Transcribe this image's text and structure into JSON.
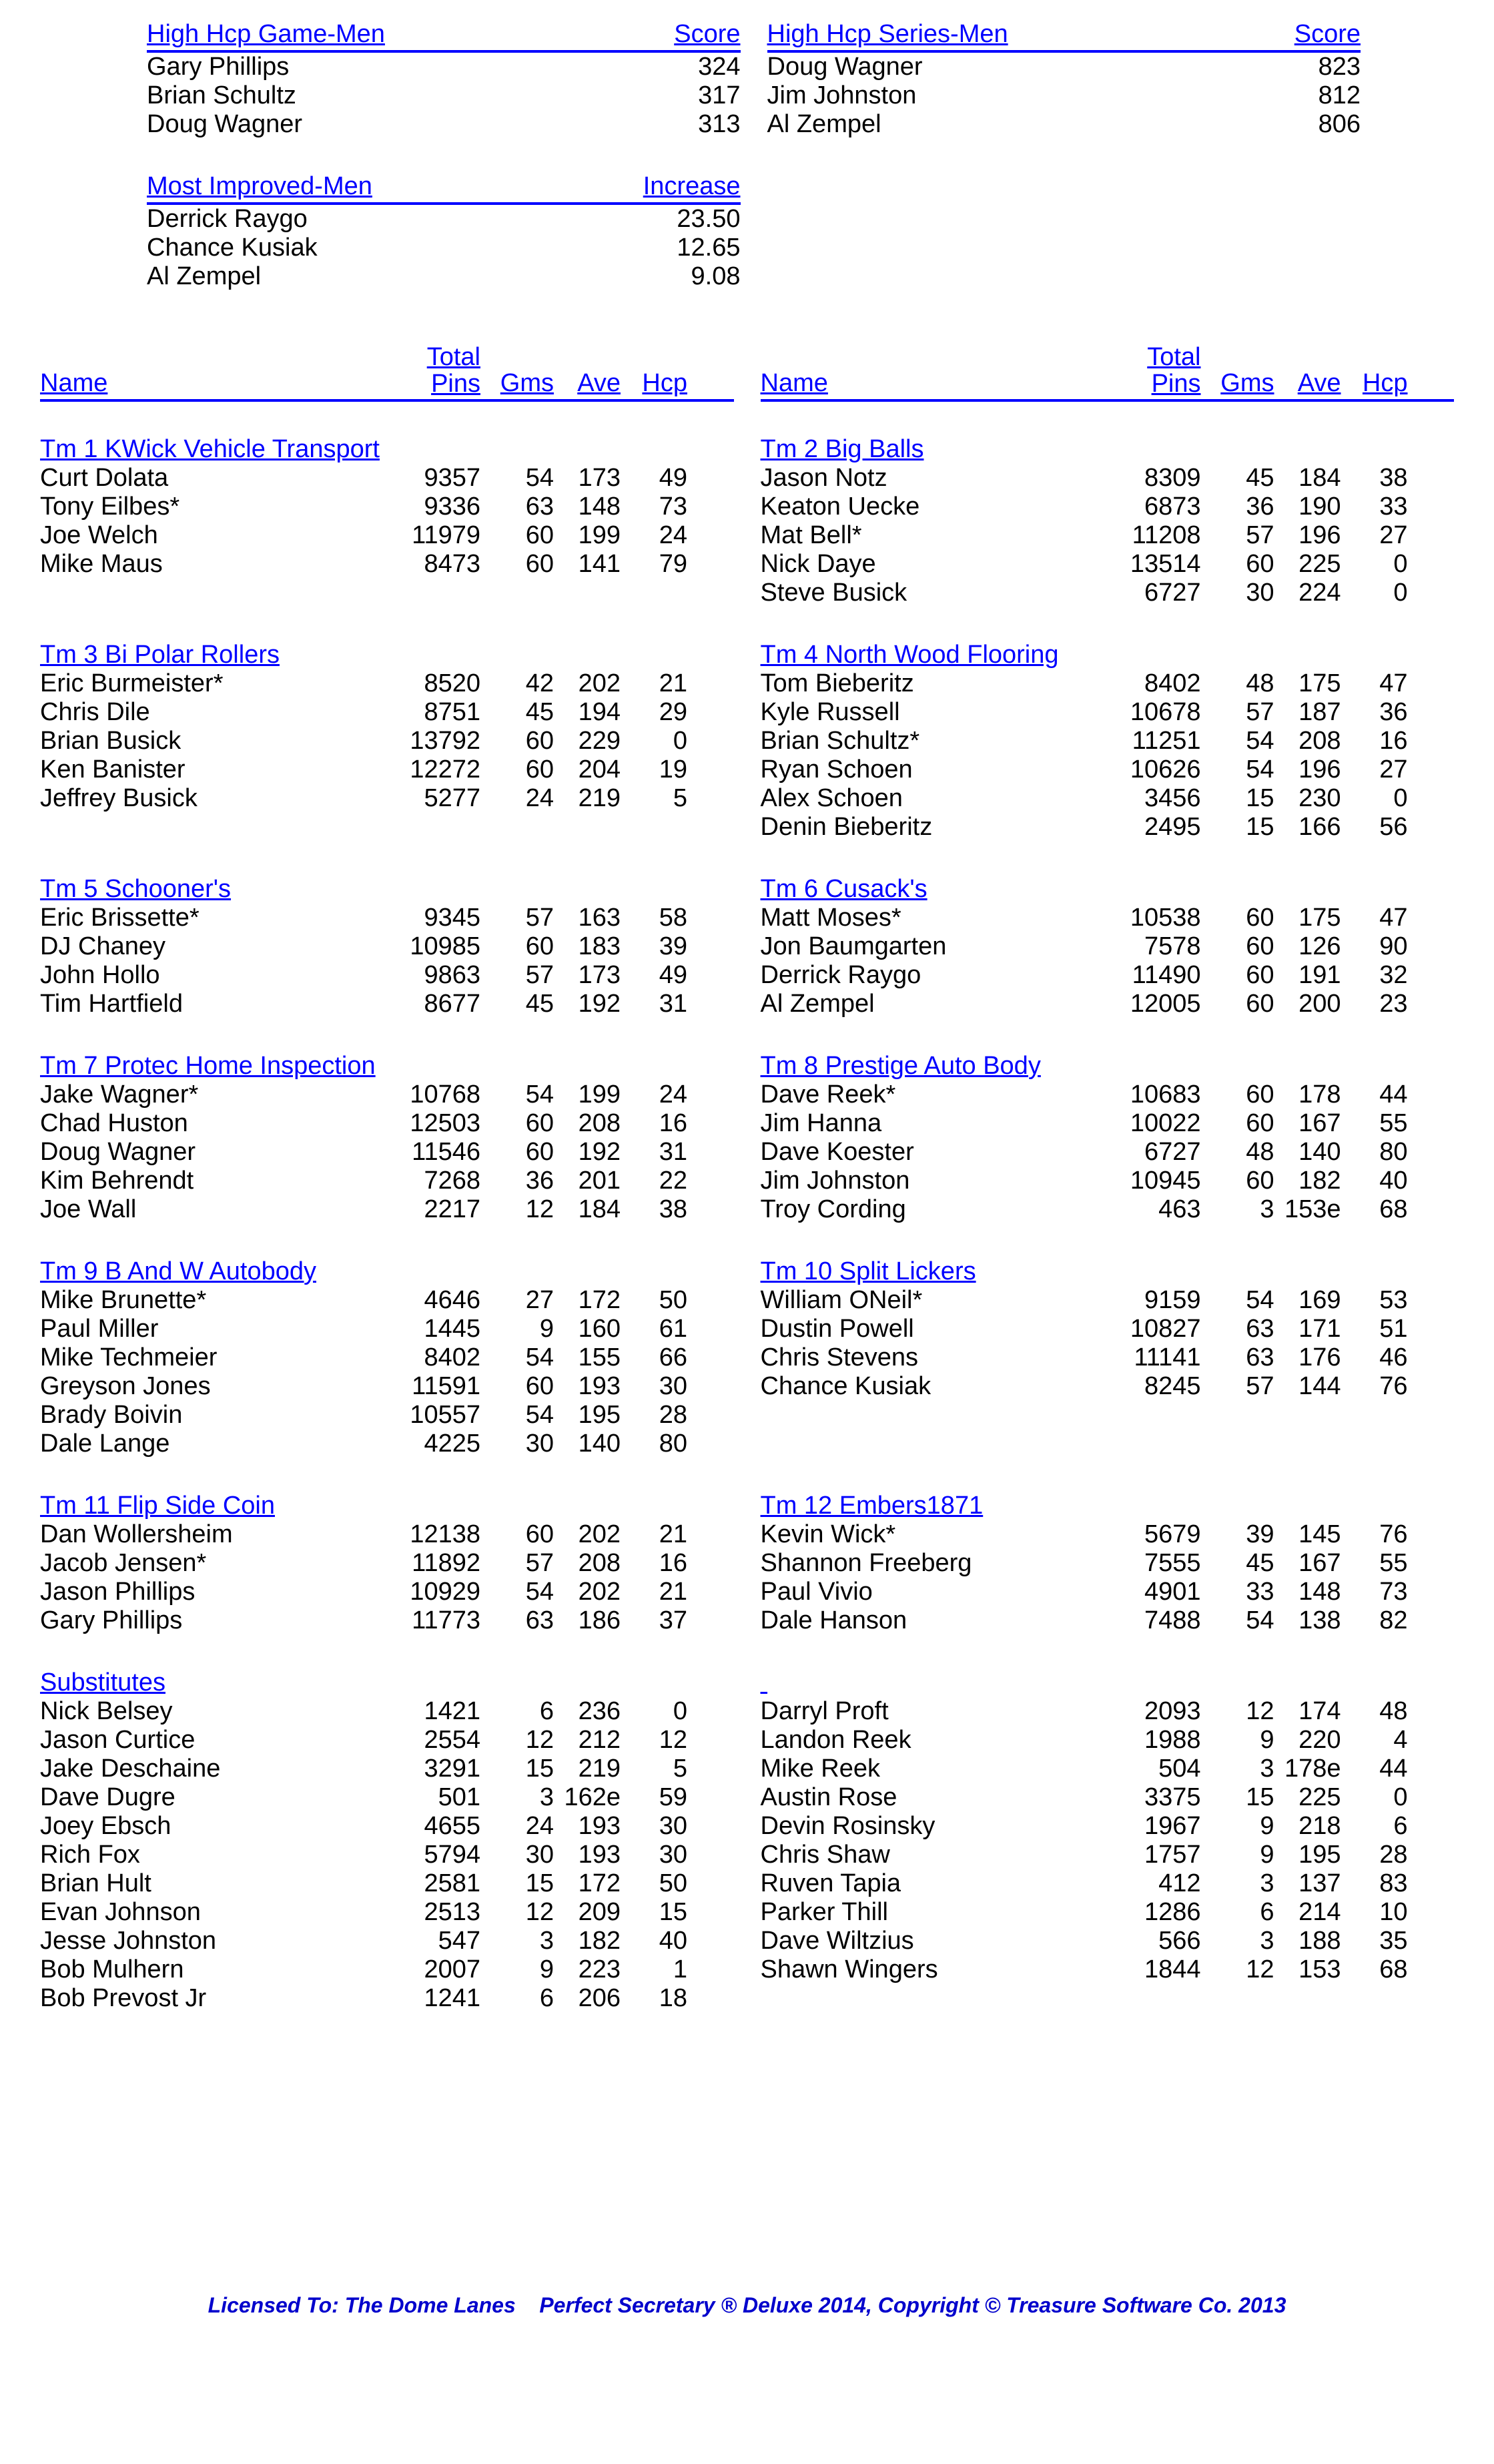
{
  "topTables": {
    "hcpGame": {
      "title": "High Hcp Game-Men",
      "valueLabel": "Score",
      "rows": [
        {
          "name": "Gary Phillips",
          "value": "324"
        },
        {
          "name": "Brian Schultz",
          "value": "317"
        },
        {
          "name": "Doug Wagner",
          "value": "313"
        }
      ]
    },
    "hcpSeries": {
      "title": "High Hcp Series-Men",
      "valueLabel": "Score",
      "rows": [
        {
          "name": "Doug Wagner",
          "value": "823"
        },
        {
          "name": "Jim Johnston",
          "value": "812"
        },
        {
          "name": "Al Zempel",
          "value": "806"
        }
      ]
    },
    "improved": {
      "title": "Most Improved-Men",
      "valueLabel": "Increase",
      "rows": [
        {
          "name": "Derrick Raygo",
          "value": "23.50"
        },
        {
          "name": "Chance Kusiak",
          "value": "12.65"
        },
        {
          "name": "Al Zempel",
          "value": "9.08"
        }
      ]
    }
  },
  "colHeaders": {
    "name": "Name",
    "pinsLine1": "Total",
    "pinsLine2": "Pins",
    "gms": "Gms",
    "ave": "Ave",
    "hcp": "Hcp"
  },
  "teamPairs": [
    {
      "left": {
        "name": "Tm 1 KWick Vehicle Transport",
        "players": [
          {
            "name": "Curt Dolata",
            "pins": "9357",
            "gms": "54",
            "ave": "173",
            "hcp": "49"
          },
          {
            "name": "Tony Eilbes*",
            "pins": "9336",
            "gms": "63",
            "ave": "148",
            "hcp": "73"
          },
          {
            "name": "Joe Welch",
            "pins": "11979",
            "gms": "60",
            "ave": "199",
            "hcp": "24"
          },
          {
            "name": "Mike Maus",
            "pins": "8473",
            "gms": "60",
            "ave": "141",
            "hcp": "79"
          }
        ]
      },
      "right": {
        "name": "Tm 2 Big Balls",
        "players": [
          {
            "name": "Jason Notz",
            "pins": "8309",
            "gms": "45",
            "ave": "184",
            "hcp": "38"
          },
          {
            "name": "Keaton Uecke",
            "pins": "6873",
            "gms": "36",
            "ave": "190",
            "hcp": "33"
          },
          {
            "name": "Mat Bell*",
            "pins": "11208",
            "gms": "57",
            "ave": "196",
            "hcp": "27"
          },
          {
            "name": "Nick Daye",
            "pins": "13514",
            "gms": "60",
            "ave": "225",
            "hcp": "0"
          },
          {
            "name": "Steve Busick",
            "pins": "6727",
            "gms": "30",
            "ave": "224",
            "hcp": "0"
          }
        ]
      }
    },
    {
      "left": {
        "name": "Tm 3 Bi Polar Rollers",
        "players": [
          {
            "name": "Eric Burmeister*",
            "pins": "8520",
            "gms": "42",
            "ave": "202",
            "hcp": "21"
          },
          {
            "name": "Chris Dile",
            "pins": "8751",
            "gms": "45",
            "ave": "194",
            "hcp": "29"
          },
          {
            "name": "Brian Busick",
            "pins": "13792",
            "gms": "60",
            "ave": "229",
            "hcp": "0"
          },
          {
            "name": "Ken Banister",
            "pins": "12272",
            "gms": "60",
            "ave": "204",
            "hcp": "19"
          },
          {
            "name": "Jeffrey Busick",
            "pins": "5277",
            "gms": "24",
            "ave": "219",
            "hcp": "5"
          }
        ]
      },
      "right": {
        "name": "Tm 4 North Wood Flooring",
        "players": [
          {
            "name": "Tom Bieberitz",
            "pins": "8402",
            "gms": "48",
            "ave": "175",
            "hcp": "47"
          },
          {
            "name": "Kyle Russell",
            "pins": "10678",
            "gms": "57",
            "ave": "187",
            "hcp": "36"
          },
          {
            "name": "Brian Schultz*",
            "pins": "11251",
            "gms": "54",
            "ave": "208",
            "hcp": "16"
          },
          {
            "name": "Ryan Schoen",
            "pins": "10626",
            "gms": "54",
            "ave": "196",
            "hcp": "27"
          },
          {
            "name": "Alex Schoen",
            "pins": "3456",
            "gms": "15",
            "ave": "230",
            "hcp": "0"
          },
          {
            "name": "Denin Bieberitz",
            "pins": "2495",
            "gms": "15",
            "ave": "166",
            "hcp": "56"
          }
        ]
      }
    },
    {
      "left": {
        "name": "Tm 5 Schooner's",
        "players": [
          {
            "name": "Eric Brissette*",
            "pins": "9345",
            "gms": "57",
            "ave": "163",
            "hcp": "58"
          },
          {
            "name": "DJ Chaney",
            "pins": "10985",
            "gms": "60",
            "ave": "183",
            "hcp": "39"
          },
          {
            "name": "John Hollo",
            "pins": "9863",
            "gms": "57",
            "ave": "173",
            "hcp": "49"
          },
          {
            "name": "Tim Hartfield",
            "pins": "8677",
            "gms": "45",
            "ave": "192",
            "hcp": "31"
          }
        ]
      },
      "right": {
        "name": "Tm 6 Cusack's",
        "players": [
          {
            "name": "Matt Moses*",
            "pins": "10538",
            "gms": "60",
            "ave": "175",
            "hcp": "47"
          },
          {
            "name": "Jon Baumgarten",
            "pins": "7578",
            "gms": "60",
            "ave": "126",
            "hcp": "90"
          },
          {
            "name": "Derrick Raygo",
            "pins": "11490",
            "gms": "60",
            "ave": "191",
            "hcp": "32"
          },
          {
            "name": "Al Zempel",
            "pins": "12005",
            "gms": "60",
            "ave": "200",
            "hcp": "23"
          }
        ]
      }
    },
    {
      "left": {
        "name": "Tm 7 Protec Home Inspection",
        "players": [
          {
            "name": "Jake Wagner*",
            "pins": "10768",
            "gms": "54",
            "ave": "199",
            "hcp": "24"
          },
          {
            "name": "Chad Huston",
            "pins": "12503",
            "gms": "60",
            "ave": "208",
            "hcp": "16"
          },
          {
            "name": "Doug Wagner",
            "pins": "11546",
            "gms": "60",
            "ave": "192",
            "hcp": "31"
          },
          {
            "name": "Kim Behrendt",
            "pins": "7268",
            "gms": "36",
            "ave": "201",
            "hcp": "22"
          },
          {
            "name": "Joe Wall",
            "pins": "2217",
            "gms": "12",
            "ave": "184",
            "hcp": "38"
          }
        ]
      },
      "right": {
        "name": "Tm 8 Prestige Auto Body",
        "players": [
          {
            "name": "Dave Reek*",
            "pins": "10683",
            "gms": "60",
            "ave": "178",
            "hcp": "44"
          },
          {
            "name": "Jim Hanna",
            "pins": "10022",
            "gms": "60",
            "ave": "167",
            "hcp": "55"
          },
          {
            "name": "Dave Koester",
            "pins": "6727",
            "gms": "48",
            "ave": "140",
            "hcp": "80"
          },
          {
            "name": "Jim Johnston",
            "pins": "10945",
            "gms": "60",
            "ave": "182",
            "hcp": "40"
          },
          {
            "name": "Troy Cording",
            "pins": "463",
            "gms": "3",
            "ave": "153e",
            "hcp": "68"
          }
        ]
      }
    },
    {
      "left": {
        "name": "Tm 9 B And W Autobody",
        "players": [
          {
            "name": "Mike Brunette*",
            "pins": "4646",
            "gms": "27",
            "ave": "172",
            "hcp": "50"
          },
          {
            "name": "Paul Miller",
            "pins": "1445",
            "gms": "9",
            "ave": "160",
            "hcp": "61"
          },
          {
            "name": "Mike Techmeier",
            "pins": "8402",
            "gms": "54",
            "ave": "155",
            "hcp": "66"
          },
          {
            "name": "Greyson Jones",
            "pins": "11591",
            "gms": "60",
            "ave": "193",
            "hcp": "30"
          },
          {
            "name": "Brady Boivin",
            "pins": "10557",
            "gms": "54",
            "ave": "195",
            "hcp": "28"
          },
          {
            "name": "Dale Lange",
            "pins": "4225",
            "gms": "30",
            "ave": "140",
            "hcp": "80"
          }
        ]
      },
      "right": {
        "name": "Tm 10 Split Lickers",
        "players": [
          {
            "name": "William ONeil*",
            "pins": "9159",
            "gms": "54",
            "ave": "169",
            "hcp": "53"
          },
          {
            "name": "Dustin Powell",
            "pins": "10827",
            "gms": "63",
            "ave": "171",
            "hcp": "51"
          },
          {
            "name": "Chris Stevens",
            "pins": "11141",
            "gms": "63",
            "ave": "176",
            "hcp": "46"
          },
          {
            "name": "Chance Kusiak",
            "pins": "8245",
            "gms": "57",
            "ave": "144",
            "hcp": "76"
          }
        ]
      }
    },
    {
      "left": {
        "name": "Tm 11 Flip Side Coin",
        "players": [
          {
            "name": "Dan Wollersheim",
            "pins": "12138",
            "gms": "60",
            "ave": "202",
            "hcp": "21"
          },
          {
            "name": "Jacob Jensen*",
            "pins": "11892",
            "gms": "57",
            "ave": "208",
            "hcp": "16"
          },
          {
            "name": "Jason Phillips",
            "pins": "10929",
            "gms": "54",
            "ave": "202",
            "hcp": "21"
          },
          {
            "name": "Gary Phillips",
            "pins": "11773",
            "gms": "63",
            "ave": "186",
            "hcp": "37"
          }
        ]
      },
      "right": {
        "name": "Tm 12 Embers1871",
        "players": [
          {
            "name": "Kevin Wick*",
            "pins": "5679",
            "gms": "39",
            "ave": "145",
            "hcp": "76"
          },
          {
            "name": "Shannon Freeberg",
            "pins": "7555",
            "gms": "45",
            "ave": "167",
            "hcp": "55"
          },
          {
            "name": "Paul Vivio",
            "pins": "4901",
            "gms": "33",
            "ave": "148",
            "hcp": "73"
          },
          {
            "name": "Dale Hanson",
            "pins": "7488",
            "gms": "54",
            "ave": "138",
            "hcp": "82"
          }
        ]
      }
    }
  ],
  "subs": {
    "title": "Substitutes",
    "left": [
      {
        "name": "Nick Belsey",
        "pins": "1421",
        "gms": "6",
        "ave": "236",
        "hcp": "0"
      },
      {
        "name": "Jason Curtice",
        "pins": "2554",
        "gms": "12",
        "ave": "212",
        "hcp": "12"
      },
      {
        "name": "Jake Deschaine",
        "pins": "3291",
        "gms": "15",
        "ave": "219",
        "hcp": "5"
      },
      {
        "name": "Dave Dugre",
        "pins": "501",
        "gms": "3",
        "ave": "162e",
        "hcp": "59"
      },
      {
        "name": "Joey Ebsch",
        "pins": "4655",
        "gms": "24",
        "ave": "193",
        "hcp": "30"
      },
      {
        "name": "Rich Fox",
        "pins": "5794",
        "gms": "30",
        "ave": "193",
        "hcp": "30"
      },
      {
        "name": "Brian Hult",
        "pins": "2581",
        "gms": "15",
        "ave": "172",
        "hcp": "50"
      },
      {
        "name": "Evan Johnson",
        "pins": "2513",
        "gms": "12",
        "ave": "209",
        "hcp": "15"
      },
      {
        "name": "Jesse Johnston",
        "pins": "547",
        "gms": "3",
        "ave": "182",
        "hcp": "40"
      },
      {
        "name": "Bob Mulhern",
        "pins": "2007",
        "gms": "9",
        "ave": "223",
        "hcp": "1"
      },
      {
        "name": "Bob Prevost Jr",
        "pins": "1241",
        "gms": "6",
        "ave": "206",
        "hcp": "18"
      }
    ],
    "right": [
      {
        "name": "Darryl Proft",
        "pins": "2093",
        "gms": "12",
        "ave": "174",
        "hcp": "48"
      },
      {
        "name": "Landon Reek",
        "pins": "1988",
        "gms": "9",
        "ave": "220",
        "hcp": "4"
      },
      {
        "name": "Mike Reek",
        "pins": "504",
        "gms": "3",
        "ave": "178e",
        "hcp": "44"
      },
      {
        "name": "Austin Rose",
        "pins": "3375",
        "gms": "15",
        "ave": "225",
        "hcp": "0"
      },
      {
        "name": "Devin Rosinsky",
        "pins": "1967",
        "gms": "9",
        "ave": "218",
        "hcp": "6"
      },
      {
        "name": "Chris Shaw",
        "pins": "1757",
        "gms": "9",
        "ave": "195",
        "hcp": "28"
      },
      {
        "name": "Ruven Tapia",
        "pins": "412",
        "gms": "3",
        "ave": "137",
        "hcp": "83"
      },
      {
        "name": "Parker Thill",
        "pins": "1286",
        "gms": "6",
        "ave": "214",
        "hcp": "10"
      },
      {
        "name": "Dave Wiltzius",
        "pins": "566",
        "gms": "3",
        "ave": "188",
        "hcp": "35"
      },
      {
        "name": "Shawn Wingers",
        "pins": "1844",
        "gms": "12",
        "ave": "153",
        "hcp": "68"
      }
    ]
  },
  "footer": "Licensed To: The Dome Lanes    Perfect Secretary ® Deluxe  2014, Copyright © Treasure Software Co. 2013"
}
